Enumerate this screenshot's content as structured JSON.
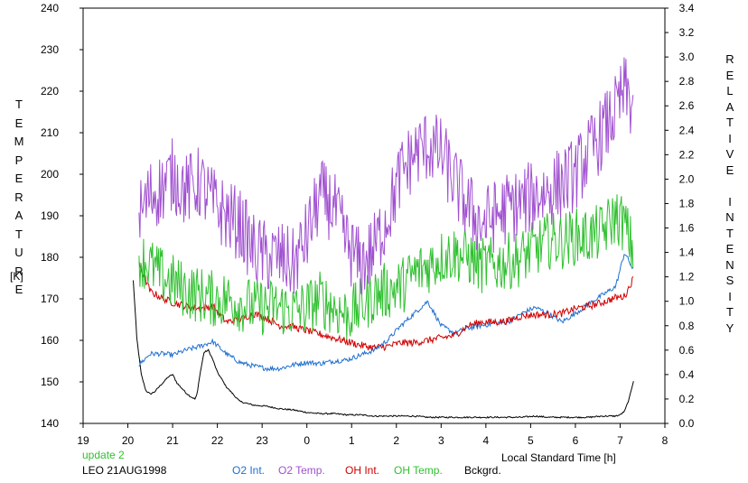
{
  "left_axis": {
    "letters": [
      "T",
      "E",
      "M",
      "P",
      "E",
      "R",
      "A",
      "T",
      "U",
      "R",
      "E"
    ],
    "unit": "[K]",
    "ticks": [
      "140",
      "150",
      "160",
      "170",
      "180",
      "190",
      "200",
      "210",
      "220",
      "230",
      "240"
    ],
    "range": [
      140,
      240
    ]
  },
  "right_axis": {
    "letters": [
      "R",
      "E",
      "L",
      "A",
      "T",
      "I",
      "V",
      "E",
      "",
      "I",
      "N",
      "T",
      "E",
      "N",
      "S",
      "I",
      "T",
      "Y"
    ],
    "ticks": [
      "0.0",
      "0.2",
      "0.4",
      "0.6",
      "0.8",
      "1.0",
      "1.2",
      "1.4",
      "1.6",
      "1.8",
      "2.0",
      "2.2",
      "2.4",
      "2.6",
      "2.8",
      "3.0",
      "3.2",
      "3.4"
    ],
    "range": [
      0,
      3.4
    ]
  },
  "x_axis": {
    "label": "Local Standard Time [h]",
    "ticks": [
      "19",
      "20",
      "21",
      "22",
      "23",
      "0",
      "1",
      "2",
      "3",
      "4",
      "5",
      "6",
      "7",
      "8"
    ],
    "range": [
      19,
      32
    ]
  },
  "footer": {
    "update": "update 2",
    "station": "LEO 21AUG1998",
    "legend": [
      {
        "label": "O2 Int.",
        "color": "#1f6fd0"
      },
      {
        "label": "O2 Temp.",
        "color": "#a050d0"
      },
      {
        "label": "OH Int.",
        "color": "#d00000"
      },
      {
        "label": "OH Temp.",
        "color": "#30c030"
      },
      {
        "label": "Bckgrd.",
        "color": "#000000"
      }
    ]
  },
  "chart_data": {
    "type": "line",
    "x_unit": "hour (continuous; 24=0h, 31=7h)",
    "series": [
      {
        "name": "O2 Temp.",
        "axis": "left",
        "color": "#a050d0",
        "noise": 9,
        "x": [
          20.25,
          20.5,
          20.8,
          21.0,
          21.3,
          21.6,
          21.9,
          22.2,
          22.5,
          22.8,
          23.1,
          23.4,
          23.7,
          24.0,
          24.3,
          24.6,
          24.9,
          25.2,
          25.5,
          25.8,
          26.1,
          26.4,
          26.7,
          27.0,
          27.3,
          27.6,
          27.9,
          28.2,
          28.5,
          28.8,
          29.1,
          29.4,
          29.7,
          30.0,
          30.3,
          30.6,
          30.9,
          31.1,
          31.3
        ],
        "y": [
          190,
          195,
          197,
          200,
          196,
          198,
          193,
          190,
          188,
          182,
          180,
          180,
          178,
          185,
          195,
          192,
          183,
          178,
          182,
          190,
          200,
          205,
          207,
          205,
          198,
          192,
          188,
          190,
          192,
          193,
          195,
          196,
          198,
          200,
          205,
          210,
          215,
          220,
          216
        ]
      },
      {
        "name": "OH Temp.",
        "axis": "left",
        "color": "#30c030",
        "noise": 7,
        "x": [
          20.25,
          20.5,
          20.8,
          21.0,
          21.3,
          21.6,
          21.9,
          22.2,
          22.5,
          22.8,
          23.1,
          23.4,
          23.7,
          24.0,
          24.3,
          24.6,
          24.9,
          25.2,
          25.5,
          25.8,
          26.1,
          26.4,
          26.7,
          27.0,
          27.3,
          27.6,
          27.9,
          28.2,
          28.5,
          28.8,
          29.1,
          29.4,
          29.7,
          30.0,
          30.3,
          30.6,
          30.9,
          31.1,
          31.3
        ],
        "y": [
          180,
          178,
          175,
          174,
          172,
          171,
          170,
          170,
          169,
          168,
          168,
          168,
          167,
          168,
          170,
          168,
          166,
          168,
          171,
          172,
          173,
          176,
          178,
          180,
          181,
          180,
          178,
          178,
          179,
          180,
          182,
          184,
          184,
          185,
          185,
          186,
          190,
          188,
          181
        ]
      },
      {
        "name": "OH Int.",
        "axis": "right",
        "color": "#d00000",
        "noise": 0.03,
        "x": [
          20.25,
          20.5,
          20.8,
          21.0,
          21.3,
          21.6,
          21.9,
          22.2,
          22.5,
          22.8,
          23.1,
          23.4,
          23.7,
          24.0,
          24.3,
          24.6,
          24.9,
          25.2,
          25.5,
          25.8,
          26.1,
          26.4,
          26.7,
          27.0,
          27.3,
          27.6,
          27.9,
          28.2,
          28.5,
          28.8,
          29.1,
          29.4,
          29.7,
          30.0,
          30.3,
          30.6,
          30.9,
          31.1,
          31.3
        ],
        "y": [
          1.31,
          1.08,
          1.02,
          0.99,
          0.96,
          0.94,
          0.96,
          0.83,
          0.85,
          0.9,
          0.86,
          0.8,
          0.79,
          0.76,
          0.73,
          0.7,
          0.67,
          0.64,
          0.62,
          0.63,
          0.66,
          0.66,
          0.68,
          0.7,
          0.72,
          0.8,
          0.83,
          0.83,
          0.84,
          0.88,
          0.89,
          0.89,
          0.9,
          0.94,
          0.96,
          0.99,
          1.03,
          1.04,
          1.19
        ]
      },
      {
        "name": "O2 Int.",
        "axis": "right",
        "color": "#1f6fd0",
        "noise": 0.02,
        "x": [
          20.25,
          20.5,
          20.8,
          21.0,
          21.3,
          21.6,
          21.9,
          22.2,
          22.5,
          22.8,
          23.1,
          23.4,
          23.7,
          24.0,
          24.3,
          24.6,
          24.9,
          25.2,
          25.5,
          25.8,
          26.1,
          26.4,
          26.7,
          27.0,
          27.3,
          27.6,
          27.9,
          28.2,
          28.5,
          28.8,
          29.1,
          29.4,
          29.7,
          30.0,
          30.3,
          30.6,
          30.9,
          31.1,
          31.3
        ],
        "y": [
          0.48,
          0.57,
          0.57,
          0.56,
          0.6,
          0.63,
          0.67,
          0.57,
          0.5,
          0.47,
          0.45,
          0.45,
          0.48,
          0.5,
          0.49,
          0.51,
          0.52,
          0.56,
          0.6,
          0.68,
          0.8,
          0.9,
          1.0,
          0.8,
          0.74,
          0.78,
          0.8,
          0.82,
          0.83,
          0.9,
          0.95,
          0.9,
          0.83,
          0.9,
          0.98,
          1.05,
          1.12,
          1.4,
          1.25
        ]
      },
      {
        "name": "Bckgrd.",
        "axis": "right",
        "color": "#000000",
        "noise": 0.006,
        "x": [
          20.12,
          20.2,
          20.3,
          20.4,
          20.5,
          20.6,
          20.75,
          20.9,
          21.0,
          21.1,
          21.2,
          21.3,
          21.4,
          21.5,
          21.55,
          21.6,
          21.7,
          21.8,
          21.9,
          22.0,
          22.2,
          22.5,
          22.8,
          23.1,
          23.4,
          23.7,
          24.0,
          24.3,
          24.6,
          24.9,
          25.2,
          25.5,
          25.8,
          26.1,
          26.4,
          26.7,
          27.0,
          27.3,
          27.6,
          27.9,
          28.2,
          28.5,
          28.8,
          29.1,
          29.4,
          29.7,
          30.0,
          30.3,
          30.6,
          30.9,
          31.0,
          31.1,
          31.2,
          31.3
        ],
        "y": [
          1.17,
          0.7,
          0.4,
          0.27,
          0.24,
          0.26,
          0.32,
          0.38,
          0.4,
          0.33,
          0.29,
          0.25,
          0.22,
          0.2,
          0.24,
          0.38,
          0.58,
          0.6,
          0.52,
          0.42,
          0.3,
          0.18,
          0.15,
          0.14,
          0.12,
          0.11,
          0.09,
          0.08,
          0.08,
          0.07,
          0.07,
          0.06,
          0.06,
          0.06,
          0.06,
          0.05,
          0.05,
          0.05,
          0.05,
          0.05,
          0.05,
          0.05,
          0.05,
          0.06,
          0.05,
          0.05,
          0.05,
          0.05,
          0.06,
          0.06,
          0.07,
          0.1,
          0.2,
          0.35
        ]
      }
    ]
  }
}
